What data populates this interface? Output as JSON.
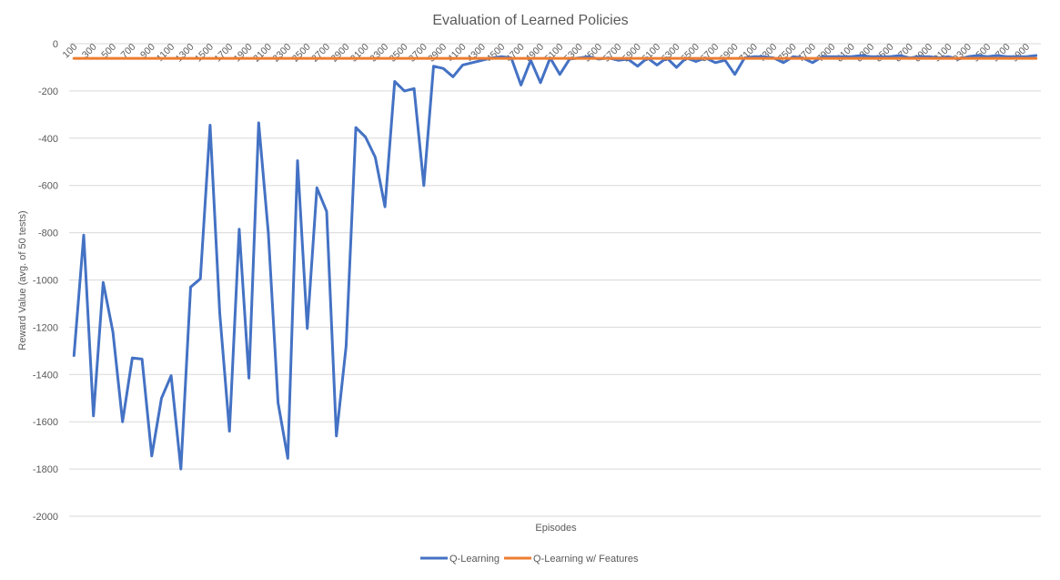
{
  "chart_data": {
    "type": "line",
    "title": "Evaluation of Learned Policies",
    "xlabel": "Episodes",
    "ylabel": "Reward Value (avg. of 50 tests)",
    "ylim": [
      -2000,
      0
    ],
    "yticks": [
      0,
      -200,
      -400,
      -600,
      -800,
      -1000,
      -1200,
      -1400,
      -1600,
      -1800,
      -2000
    ],
    "grid": true,
    "legend_position": "bottom",
    "x": [
      100,
      200,
      300,
      400,
      500,
      600,
      700,
      800,
      900,
      1000,
      1100,
      1200,
      1300,
      1400,
      1500,
      1600,
      1700,
      1800,
      1900,
      2000,
      2100,
      2200,
      2300,
      2400,
      2500,
      2600,
      2700,
      2800,
      2900,
      3000,
      3100,
      3200,
      3300,
      3400,
      3500,
      3600,
      3700,
      3800,
      3900,
      4000,
      4100,
      4200,
      4300,
      4400,
      4500,
      4600,
      4700,
      4800,
      4900,
      5000,
      5100,
      5200,
      5300,
      5400,
      5500,
      5600,
      5700,
      5800,
      5900,
      6000,
      6100,
      6200,
      6300,
      6400,
      6500,
      6600,
      6700,
      6800,
      6900,
      7000,
      7100,
      7200,
      7300,
      7400,
      7500,
      7600,
      7700,
      7800,
      7900,
      8000,
      8100,
      8200,
      8300,
      8400,
      8500,
      8600,
      8700,
      8800,
      8900,
      9000,
      9100,
      9200,
      9300,
      9400,
      9500,
      9600,
      9700,
      9800,
      9900,
      10000
    ],
    "x_tick_labels": [
      "100",
      "300",
      "500",
      "700",
      "900",
      "1100",
      "1300",
      "1500",
      "1700",
      "1900",
      "2100",
      "2300",
      "2500",
      "2700",
      "2900",
      "3100",
      "3300",
      "3500",
      "3700",
      "3900",
      "4100",
      "4300",
      "4500",
      "4700",
      "4900",
      "5100",
      "5300",
      "5500",
      "5700",
      "5900",
      "6100",
      "6300",
      "6500",
      "6700",
      "6900",
      "7100",
      "7300",
      "7500",
      "7700",
      "7900",
      "8100",
      "8300",
      "8500",
      "8700",
      "8900",
      "9100",
      "9300",
      "9500",
      "9700",
      "9900"
    ],
    "series": [
      {
        "name": "Q-Learning",
        "color": "#4472C4",
        "values": [
          -1320,
          -810,
          -1575,
          -1010,
          -1220,
          -1600,
          -1330,
          -1335,
          -1745,
          -1500,
          -1405,
          -1800,
          -1030,
          -995,
          -345,
          -1140,
          -1640,
          -785,
          -1415,
          -335,
          -800,
          -1520,
          -1755,
          -495,
          -1205,
          -610,
          -710,
          -1660,
          -1280,
          -355,
          -395,
          -480,
          -690,
          -160,
          -200,
          -190,
          -600,
          -95,
          -105,
          -140,
          -90,
          -80,
          -70,
          -60,
          -55,
          -60,
          -175,
          -70,
          -165,
          -60,
          -130,
          -65,
          -60,
          -55,
          -65,
          -60,
          -70,
          -65,
          -95,
          -60,
          -90,
          -60,
          -100,
          -60,
          -75,
          -60,
          -80,
          -70,
          -130,
          -60,
          -55,
          -55,
          -60,
          -80,
          -55,
          -60,
          -80,
          -55,
          -55,
          -55,
          -55,
          -50,
          -55,
          -55,
          -55,
          -50,
          -60,
          -55,
          -55,
          -60,
          -55,
          -65,
          -55,
          -50,
          -55,
          -50,
          -55,
          -55,
          -55,
          -50
        ]
      },
      {
        "name": "Q-Learning w/ Features",
        "color": "#ED7D31",
        "values": [
          -62,
          -62,
          -62,
          -62,
          -62,
          -62,
          -62,
          -62,
          -62,
          -62,
          -62,
          -62,
          -62,
          -62,
          -62,
          -62,
          -62,
          -62,
          -62,
          -62,
          -62,
          -62,
          -62,
          -62,
          -62,
          -62,
          -62,
          -62,
          -62,
          -62,
          -62,
          -62,
          -62,
          -62,
          -62,
          -62,
          -62,
          -62,
          -62,
          -62,
          -62,
          -62,
          -62,
          -62,
          -62,
          -62,
          -62,
          -62,
          -62,
          -62,
          -62,
          -62,
          -62,
          -62,
          -62,
          -62,
          -62,
          -62,
          -62,
          -62,
          -62,
          -62,
          -62,
          -62,
          -62,
          -62,
          -62,
          -62,
          -62,
          -62,
          -62,
          -62,
          -62,
          -62,
          -62,
          -62,
          -62,
          -62,
          -62,
          -62,
          -62,
          -62,
          -62,
          -62,
          -62,
          -62,
          -62,
          -62,
          -62,
          -62,
          -62,
          -62,
          -62,
          -62,
          -62,
          -62,
          -62,
          -62,
          -62,
          -62
        ]
      }
    ]
  }
}
